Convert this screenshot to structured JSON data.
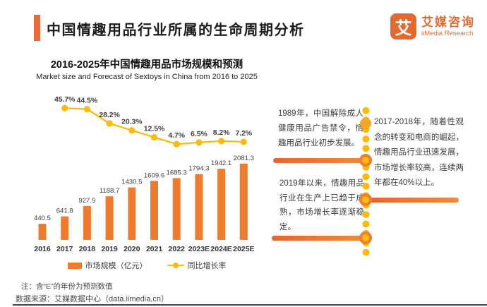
{
  "header": {
    "title": "中国情趣用品行业所属的生命周期分析",
    "logo": {
      "mark": "艾",
      "name_cn": "艾媒咨询",
      "name_en": "iiMedia Research"
    }
  },
  "chart": {
    "title": "2016-2025年中国情趣用品市场规模和预测",
    "subtitle": "Market size and Forecast of Sextoys in China from 2016 to 2025",
    "legend": [
      {
        "label": "市场规模（亿元）",
        "type": "bar",
        "color": "#ED7C31"
      },
      {
        "label": "同比增长率",
        "type": "line",
        "color": "#FBBB0C"
      }
    ]
  },
  "chart_data": {
    "type": "bar+line",
    "title": "2016-2025年中国情趣用品市场规模和预测",
    "subtitle": "Market size and Forecast of Sextoys in China from 2016 to 2025",
    "categories": [
      "2016",
      "2017",
      "2018",
      "2019",
      "2020",
      "2021",
      "2022",
      "2023E",
      "2024E",
      "2025E"
    ],
    "series": [
      {
        "name": "市场规模（亿元）",
        "type": "bar",
        "color": "#ED7C31",
        "unit": "亿元",
        "values": [
          440.5,
          641.8,
          927.5,
          1188.7,
          1430.5,
          1609.6,
          1685.3,
          1794.3,
          1942.1,
          2081.3
        ]
      },
      {
        "name": "同比增长率",
        "type": "line",
        "color": "#FBBB0C",
        "unit": "%",
        "values": [
          null,
          45.7,
          44.5,
          28.2,
          20.3,
          12.5,
          4.7,
          6.5,
          8.2,
          7.2
        ]
      }
    ],
    "xlabel": "",
    "ylabel": "",
    "grid": false,
    "legend_position": "bottom",
    "data_labels": true
  },
  "timeline": {
    "events": [
      {
        "text": "1989年，中国解除成人健康用品广告禁令，情趣用品行业初步发展。",
        "side": "left"
      },
      {
        "text": "2017-2018年，随着性观念的转变和电商的崛起，情趣用品行业迅速发展，市场增长率较高，连续两年都在40%以上。",
        "side": "right"
      },
      {
        "text": "2019年以来，情趣用品行业在生产上已趋于成熟，市场增长率逐渐稳定。",
        "side": "left"
      }
    ]
  },
  "footer": {
    "note": "注：含“E”的年份为预测数值",
    "source": "数据来源：艾媒数据中心（data.iimedia.cn）"
  },
  "colors": {
    "accent": "#EA6A3C",
    "bar": "#ED7C31",
    "line": "#FBBB0C",
    "rule": "#3A4856"
  }
}
